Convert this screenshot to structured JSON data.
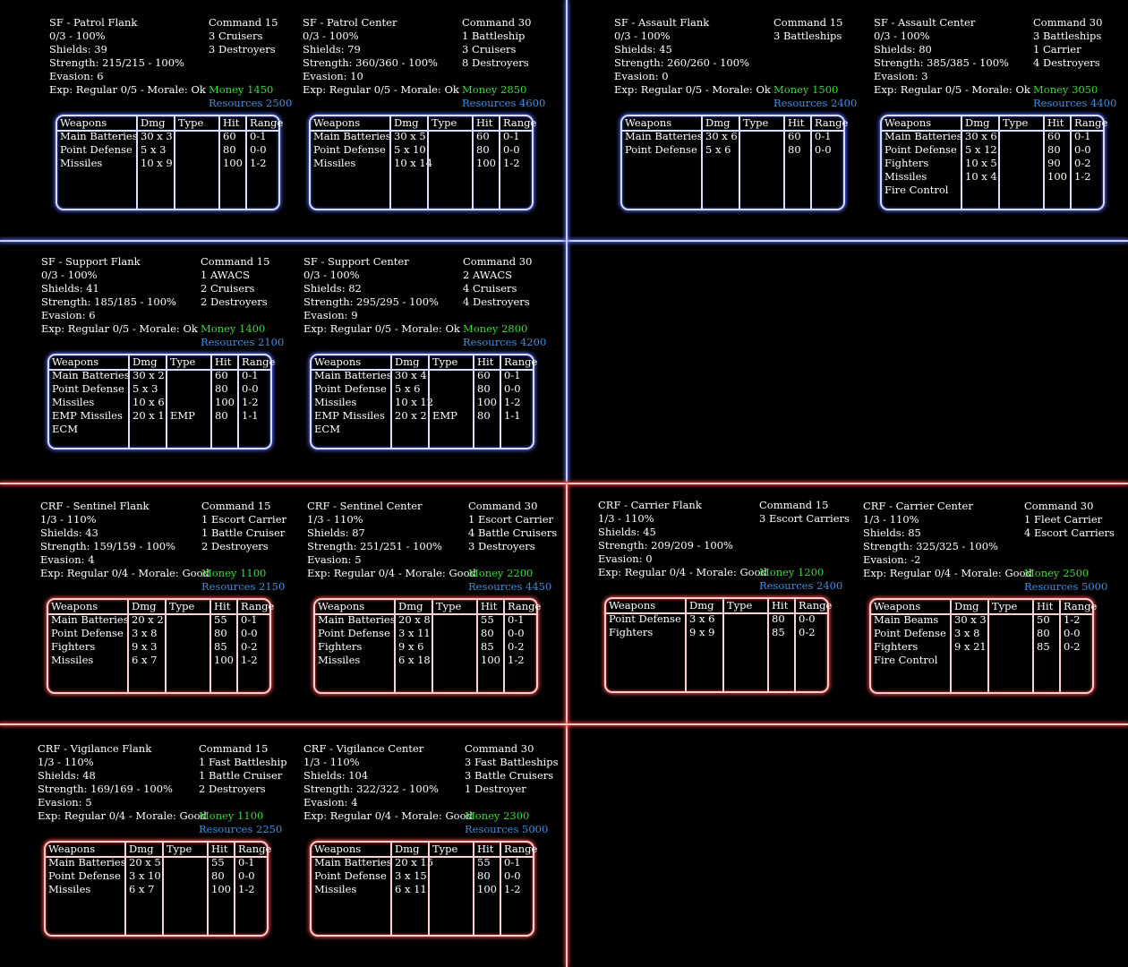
{
  "headers": {
    "weapons": "Weapons",
    "dmg": "Dmg",
    "type": "Type",
    "hit": "Hit",
    "range": "Range"
  },
  "cards": [
    {
      "pos": "a",
      "theme": "b",
      "title": "SF - Patrol Flank",
      "tier": "0/3 - 100%",
      "shields": "Shields: 39",
      "strength": "Strength: 215/215 - 100%",
      "evasion": "Evasion: 6",
      "exp": "Exp: Regular 0/5 - Morale: Ok",
      "command": [
        "Command 15",
        "3 Cruisers",
        "3 Destroyers"
      ],
      "money": "Money 1450",
      "resources": "Resources 2500",
      "weapons": [
        [
          "Main Batteries",
          "30 x 3",
          "",
          "60",
          "0-1"
        ],
        [
          "Point Defense",
          "5 x 3",
          "",
          "80",
          "0-0"
        ],
        [
          "Missiles",
          "10 x 9",
          "",
          "100",
          "1-2"
        ]
      ]
    },
    {
      "pos": "b",
      "theme": "b",
      "title": "SF - Patrol Center",
      "tier": "0/3 - 100%",
      "shields": "Shields: 79",
      "strength": "Strength: 360/360 - 100%",
      "evasion": "Evasion: 10",
      "exp": "Exp: Regular 0/5 - Morale: Ok",
      "command": [
        "Command 30",
        "1 Battleship",
        "3 Cruisers",
        "8 Destroyers"
      ],
      "money": "Money 2850",
      "resources": "Resources 4600",
      "weapons": [
        [
          "Main Batteries",
          "30 x 5",
          "",
          "60",
          "0-1"
        ],
        [
          "Point Defense",
          "5 x 10",
          "",
          "80",
          "0-0"
        ],
        [
          "Missiles",
          "10 x 14",
          "",
          "100",
          "1-2"
        ]
      ]
    },
    {
      "pos": "c",
      "theme": "b",
      "title": "SF - Assault Flank",
      "tier": "0/3 - 100%",
      "shields": "Shields: 45",
      "strength": "Strength: 260/260 - 100%",
      "evasion": "Evasion: 0",
      "exp": "Exp: Regular 0/5 - Morale: Ok",
      "command": [
        "Command 15",
        "3 Battleships"
      ],
      "money": "Money 1500",
      "resources": "Resources 2400",
      "weapons": [
        [
          "Main Batteries",
          "30 x 6",
          "",
          "60",
          "0-1"
        ],
        [
          "Point Defense",
          "5 x 6",
          "",
          "80",
          "0-0"
        ]
      ]
    },
    {
      "pos": "d",
      "theme": "b",
      "title": "SF - Assault Center",
      "tier": "0/3 - 100%",
      "shields": "Shields: 80",
      "strength": "Strength: 385/385 - 100%",
      "evasion": "Evasion: 3",
      "exp": "Exp: Regular 0/5 - Morale: Ok",
      "command": [
        "Command 30",
        "3 Battleships",
        "1 Carrier",
        "4 Destroyers"
      ],
      "money": "Money 3050",
      "resources": "Resources 4400",
      "weapons": [
        [
          "Main Batteries",
          "30 x 6",
          "",
          "60",
          "0-1"
        ],
        [
          "Point Defense",
          "5 x 12",
          "",
          "80",
          "0-0"
        ],
        [
          "Fighters",
          "10 x 5",
          "",
          "90",
          "0-2"
        ],
        [
          "Missiles",
          "10 x 4",
          "",
          "100",
          "1-2"
        ],
        [
          "Fire Control",
          "",
          "",
          "",
          ""
        ]
      ]
    },
    {
      "pos": "e",
      "theme": "b",
      "title": "SF - Support Flank",
      "tier": "0/3 - 100%",
      "shields": "Shields: 41",
      "strength": "Strength: 185/185 - 100%",
      "evasion": "Evasion: 6",
      "exp": "Exp: Regular 0/5 - Morale: Ok",
      "command": [
        "Command 15",
        "1 AWACS",
        "2 Cruisers",
        "2 Destroyers"
      ],
      "money": "Money 1400",
      "resources": "Resources 2100",
      "weapons": [
        [
          "Main Batteries",
          "30 x 2",
          "",
          "60",
          "0-1"
        ],
        [
          "Point Defense",
          "5 x 3",
          "",
          "80",
          "0-0"
        ],
        [
          "Missiles",
          "10 x 6",
          "",
          "100",
          "1-2"
        ],
        [
          "EMP Missiles",
          "20 x 1",
          "EMP",
          "80",
          "1-1"
        ],
        [
          "ECM",
          "",
          "",
          "",
          ""
        ]
      ]
    },
    {
      "pos": "f",
      "theme": "b",
      "title": "SF - Support Center",
      "tier": "0/3 - 100%",
      "shields": "Shields: 82",
      "strength": "Strength: 295/295 - 100%",
      "evasion": "Evasion: 9",
      "exp": "Exp: Regular 0/5 - Morale: Ok",
      "command": [
        "Command 30",
        "2 AWACS",
        "4 Cruisers",
        "4 Destroyers"
      ],
      "money": "Money 2800",
      "resources": "Resources 4200",
      "weapons": [
        [
          "Main Batteries",
          "30 x 4",
          "",
          "60",
          "0-1"
        ],
        [
          "Point Defense",
          "5 x 6",
          "",
          "80",
          "0-0"
        ],
        [
          "Missiles",
          "10 x 12",
          "",
          "100",
          "1-2"
        ],
        [
          "EMP Missiles",
          "20 x 2",
          "EMP",
          "80",
          "1-1"
        ],
        [
          "ECM",
          "",
          "",
          "",
          ""
        ]
      ]
    },
    {
      "pos": "g",
      "theme": "r",
      "title": "CRF - Sentinel Flank",
      "tier": "1/3 - 110%",
      "shields": "Shields: 43",
      "strength": "Strength: 159/159 - 100%",
      "evasion": "Evasion: 4",
      "exp": "Exp: Regular 0/4 - Morale: Good",
      "command": [
        "Command 15",
        "1 Escort Carrier",
        "1 Battle Cruiser",
        "2 Destroyers"
      ],
      "money": "Money 1100",
      "resources": "Resources 2150",
      "weapons": [
        [
          "Main Batteries",
          "20 x 2",
          "",
          "55",
          "0-1"
        ],
        [
          "Point Defense",
          "3 x 8",
          "",
          "80",
          "0-0"
        ],
        [
          "Fighters",
          "9 x 3",
          "",
          "85",
          "0-2"
        ],
        [
          "Missiles",
          "6 x 7",
          "",
          "100",
          "1-2"
        ]
      ]
    },
    {
      "pos": "h",
      "theme": "r",
      "title": "CRF - Sentinel Center",
      "tier": "1/3 - 110%",
      "shields": "Shields: 87",
      "strength": "Strength: 251/251 - 100%",
      "evasion": "Evasion: 5",
      "exp": "Exp: Regular 0/4 - Morale: Good",
      "command": [
        "Command 30",
        "1 Escort Carrier",
        "4 Battle Cruisers",
        "3 Destroyers"
      ],
      "money": "Money 2200",
      "resources": "Resources 4450",
      "weapons": [
        [
          "Main Batteries",
          "20 x 8",
          "",
          "55",
          "0-1"
        ],
        [
          "Point Defense",
          "3 x 11",
          "",
          "80",
          "0-0"
        ],
        [
          "Fighters",
          "9 x 6",
          "",
          "85",
          "0-2"
        ],
        [
          "Missiles",
          "6 x 18",
          "",
          "100",
          "1-2"
        ]
      ]
    },
    {
      "pos": "i",
      "theme": "r",
      "title": "CRF - Carrier Flank",
      "tier": "1/3 - 110%",
      "shields": "Shields: 45",
      "strength": "Strength: 209/209 - 100%",
      "evasion": "Evasion: 0",
      "exp": "Exp: Regular 0/4 - Morale: Good",
      "command": [
        "Command 15",
        "3 Escort Carriers"
      ],
      "money": "Money 1200",
      "resources": "Resources 2400",
      "weapons": [
        [
          "Point Defense",
          "3 x 6",
          "",
          "80",
          "0-0"
        ],
        [
          "Fighters",
          "9 x 9",
          "",
          "85",
          "0-2"
        ]
      ]
    },
    {
      "pos": "j",
      "theme": "r",
      "title": "CRF - Carrier Center",
      "tier": "1/3 - 110%",
      "shields": "Shields: 85",
      "strength": "Strength: 325/325 - 100%",
      "evasion": "Evasion: -2",
      "exp": "Exp: Regular 0/4 - Morale: Good",
      "command": [
        "Command 30",
        "1 Fleet Carrier",
        "4 Escort Carriers"
      ],
      "money": "Money 2500",
      "resources": "Resources 5000",
      "weapons": [
        [
          "Main Beams",
          "30 x 3",
          "",
          "50",
          "1-2"
        ],
        [
          "Point Defense",
          "3 x 8",
          "",
          "80",
          "0-0"
        ],
        [
          "Fighters",
          "9 x 21",
          "",
          "85",
          "0-2"
        ],
        [
          "Fire Control",
          "",
          "",
          "",
          ""
        ]
      ]
    },
    {
      "pos": "k",
      "theme": "r",
      "title": "CRF - Vigilance Flank",
      "tier": "1/3 - 110%",
      "shields": "Shields: 48",
      "strength": "Strength: 169/169 - 100%",
      "evasion": "Evasion: 5",
      "exp": "Exp: Regular 0/4 - Morale: Good",
      "command": [
        "Command 15",
        "1 Fast Battleship",
        "1 Battle Cruiser",
        "2 Destroyers"
      ],
      "money": "Money 1100",
      "resources": "Resources 2250",
      "weapons": [
        [
          "Main Batteries",
          "20 x 5",
          "",
          "55",
          "0-1"
        ],
        [
          "Point Defense",
          "3 x 10",
          "",
          "80",
          "0-0"
        ],
        [
          "Missiles",
          "6 x 7",
          "",
          "100",
          "1-2"
        ]
      ]
    },
    {
      "pos": "l",
      "theme": "r",
      "title": "CRF - Vigilance Center",
      "tier": "1/3 - 110%",
      "shields": "Shields: 104",
      "strength": "Strength: 322/322 - 100%",
      "evasion": "Evasion: 4",
      "exp": "Exp: Regular 0/4 - Morale: Good",
      "command": [
        "Command 30",
        "3 Fast Battleships",
        "3 Battle Cruisers",
        "1 Destroyer"
      ],
      "money": "Money 2300",
      "resources": "Resources 5000",
      "weapons": [
        [
          "Main Batteries",
          "20 x 15",
          "",
          "55",
          "0-1"
        ],
        [
          "Point Defense",
          "3 x 15",
          "",
          "80",
          "0-0"
        ],
        [
          "Missiles",
          "6 x 11",
          "",
          "100",
          "1-2"
        ]
      ]
    }
  ]
}
